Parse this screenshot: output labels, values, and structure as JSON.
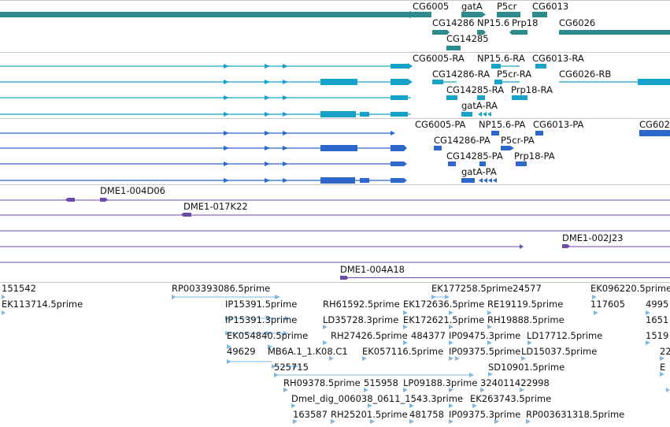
{
  "colors": {
    "gene": "#2e8b8b",
    "transcript": "#17a3c7",
    "protein": "#2d67cc",
    "clone": "#6b4aa8",
    "est": "#7fb8df"
  },
  "tracks": {
    "genes": {
      "labels": [
        "CG6005",
        "gatA",
        "P5cr",
        "CG6013",
        "CG14286",
        "NP15.6",
        "Prp18",
        "CG6026",
        "CG14285"
      ]
    },
    "transcripts": {
      "labels": [
        "CG6005-RA",
        "NP15.6-RA",
        "CG6013-RA",
        "CG14286-RA",
        "P5cr-RA",
        "CG6026-RB",
        "CG14285-RA",
        "Prp18-RA",
        "gatA-RA"
      ]
    },
    "proteins": {
      "labels": [
        "CG6005-PA",
        "NP15.6-PA",
        "CG6013-PA",
        "CG602",
        "CG14286-PA",
        "P5cr-PA",
        "CG14285-PA",
        "Prp18-PA",
        "gatA-PA"
      ]
    },
    "clones": {
      "labels": [
        "DME1-004D06",
        "DME1-017K22",
        "DME1-002J23",
        "DME1-004A18"
      ]
    },
    "ests": {
      "labels": [
        "151542",
        "RP003393086.5prime",
        "EK177258.5prime24577",
        "EK096220.5prime",
        "EK113714.5prime",
        "RH61592.5prime",
        "EK172636.5prime",
        "RE19119.5prime",
        "117605",
        "4995",
        "IP15391.5prime",
        "LD35728.3prime",
        "EK172621.5prime",
        "RH19888.5prime",
        "1651",
        "IP15391.3prime",
        "RH27426.5prime",
        "484377",
        "IP09475.3prime",
        "LD17712.5prime",
        "1519",
        "EK054840.5prime",
        "EK057116.5prime",
        "IP09375.5prime",
        "LD15037.5prime",
        "22",
        "49629",
        "MB6A.1_1.K08.C1",
        "SD10901.5prime",
        "E",
        "525715",
        "324011422998",
        "RH09378.5prime",
        "515958",
        "LP09188.3prime",
        "EK263743.5prime",
        "Dmel_dig_006038_0611_1543.3prime",
        "163587",
        "RH25201.5prime",
        "481758",
        "IP09375.3prime",
        "RP003631318.5prime"
      ]
    }
  }
}
